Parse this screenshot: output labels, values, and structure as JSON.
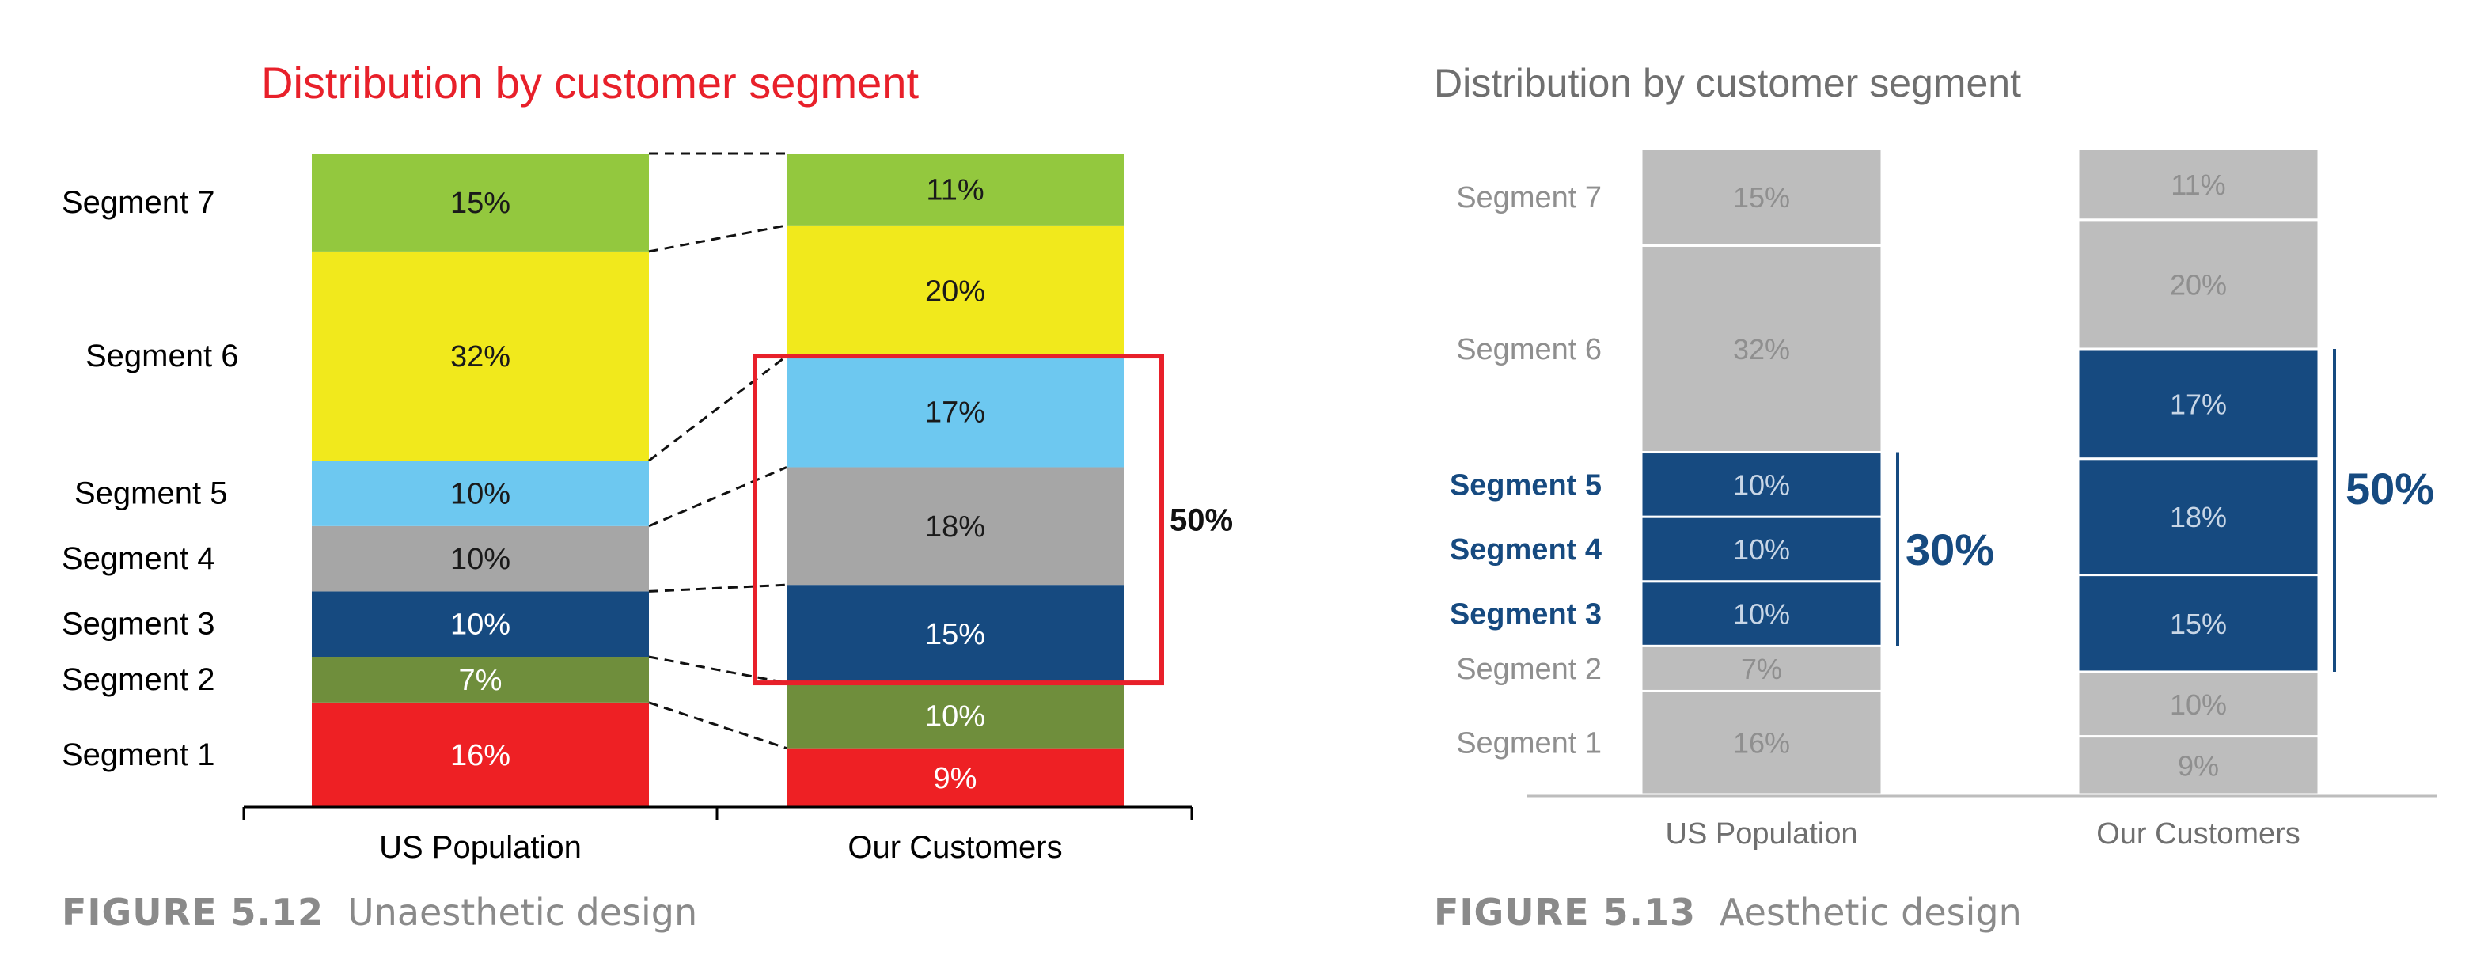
{
  "chart_data": [
    {
      "type": "bar",
      "title": "Distribution by customer segment",
      "categories": [
        "US Population",
        "Our Customers"
      ],
      "series": [
        {
          "name": "Segment 1",
          "values": [
            16,
            9
          ],
          "labels": [
            "16%",
            "9%"
          ],
          "color": "#ee2024"
        },
        {
          "name": "Segment 2",
          "values": [
            7,
            10
          ],
          "labels": [
            "7%",
            "10%"
          ],
          "color": "#6f8e3c"
        },
        {
          "name": "Segment 3",
          "values": [
            10,
            15
          ],
          "labels": [
            "10%",
            "15%"
          ],
          "color": "#164a80"
        },
        {
          "name": "Segment 4",
          "values": [
            10,
            18
          ],
          "labels": [
            "10%",
            "18%"
          ],
          "color": "#a6a6a6"
        },
        {
          "name": "Segment 5",
          "values": [
            10,
            17
          ],
          "labels": [
            "10%",
            "17%"
          ],
          "color": "#6dc8f0"
        },
        {
          "name": "Segment 6",
          "values": [
            32,
            20
          ],
          "labels": [
            "32%",
            "20%"
          ],
          "color": "#f1e91c"
        },
        {
          "name": "Segment 7",
          "values": [
            15,
            11
          ],
          "labels": [
            "15%",
            "11%"
          ],
          "color": "#93c83e"
        }
      ],
      "stacked": true,
      "highlight": {
        "label": "50%",
        "box_color": "#e8202a"
      },
      "caption": {
        "number": "FIGURE 5.12",
        "text": "Unaesthetic design"
      }
    },
    {
      "type": "bar",
      "title": "Distribution by customer segment",
      "categories": [
        "US Population",
        "Our Customers"
      ],
      "series": [
        {
          "name": "Segment 1",
          "values": [
            16,
            9
          ],
          "labels": [
            "16%",
            "9%"
          ]
        },
        {
          "name": "Segment 2",
          "values": [
            7,
            10
          ],
          "labels": [
            "7%",
            "10%"
          ]
        },
        {
          "name": "Segment 3",
          "values": [
            10,
            15
          ],
          "labels": [
            "10%",
            "15%"
          ]
        },
        {
          "name": "Segment 4",
          "values": [
            10,
            18
          ],
          "labels": [
            "10%",
            "18%"
          ]
        },
        {
          "name": "Segment 5",
          "values": [
            10,
            17
          ],
          "labels": [
            "10%",
            "17%"
          ]
        },
        {
          "name": "Segment 6",
          "values": [
            32,
            20
          ],
          "labels": [
            "32%",
            "20%"
          ]
        },
        {
          "name": "Segment 7",
          "values": [
            15,
            11
          ],
          "labels": [
            "15%",
            "11%"
          ]
        }
      ],
      "stacked": true,
      "colors": {
        "base": "#bdbdbd",
        "highlight": "#164a80",
        "base_text": "#8f8f8f",
        "axis": "#bdbdbd"
      },
      "highlight_left": {
        "segments": [
          "Segment 3",
          "Segment 4",
          "Segment 5"
        ],
        "label": "30%"
      },
      "highlight_right": {
        "segments": [
          "Segment 3",
          "Segment 4",
          "Segment 5"
        ],
        "label": "50%"
      },
      "caption": {
        "number": "FIGURE 5.13",
        "text": "Aesthetic design"
      }
    }
  ]
}
